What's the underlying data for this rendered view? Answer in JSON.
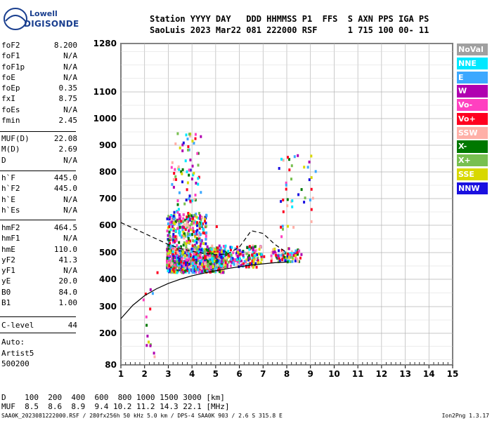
{
  "brand": {
    "line1": "Lowell",
    "line2": "DIGISONDE"
  },
  "header": {
    "line1": "Station YYYY DAY   DDD HHMMSS P1  FFS  S AXN PPS IGA PS",
    "line2": "SaoLuis 2023 Mar22 081 222000 RSF      1 715 100 00- 11"
  },
  "params_group1": [
    {
      "label": "foF2",
      "value": "8.200"
    },
    {
      "label": "foF1",
      "value": "N/A"
    },
    {
      "label": "foF1p",
      "value": "N/A"
    },
    {
      "label": "foE",
      "value": "N/A"
    },
    {
      "label": "foEp",
      "value": "0.35"
    },
    {
      "label": "fxI",
      "value": "8.75"
    },
    {
      "label": "foEs",
      "value": "N/A"
    },
    {
      "label": "fmin",
      "value": "2.45"
    }
  ],
  "params_group2": [
    {
      "label": "MUF(D)",
      "value": "22.08"
    },
    {
      "label": "M(D)",
      "value": "2.69"
    },
    {
      "label": "D",
      "value": "N/A"
    }
  ],
  "params_group3": [
    {
      "label": "h`F",
      "value": "445.0"
    },
    {
      "label": "h`F2",
      "value": "445.0"
    },
    {
      "label": "h`E",
      "value": "N/A"
    },
    {
      "label": "h`Es",
      "value": "N/A"
    }
  ],
  "params_group4": [
    {
      "label": "hmF2",
      "value": "464.5"
    },
    {
      "label": "hmF1",
      "value": "N/A"
    },
    {
      "label": "hmE",
      "value": "110.0"
    },
    {
      "label": "yF2",
      "value": "41.3"
    },
    {
      "label": "yF1",
      "value": "N/A"
    },
    {
      "label": "yE",
      "value": "20.0"
    },
    {
      "label": "B0",
      "value": "84.0"
    },
    {
      "label": "B1",
      "value": "1.00"
    }
  ],
  "clevel": {
    "label": "C-level",
    "value": "44"
  },
  "auto": {
    "line1": "Auto:",
    "line2": "Artist5",
    "line3": "500200"
  },
  "legend": [
    {
      "label": "NoVal",
      "color": "#a0a0a0"
    },
    {
      "label": "NNE",
      "color": "#00e8ff"
    },
    {
      "label": "E",
      "color": "#3ca8ff"
    },
    {
      "label": "W",
      "color": "#b000b0"
    },
    {
      "label": "Vo-",
      "color": "#ff40c0"
    },
    {
      "label": "Vo+",
      "color": "#ff0020"
    },
    {
      "label": "SSW",
      "color": "#ffb0a8"
    },
    {
      "label": "X-",
      "color": "#007800"
    },
    {
      "label": "X+",
      "color": "#78c050"
    },
    {
      "label": "SSE",
      "color": "#d8d800"
    },
    {
      "label": "NNW",
      "color": "#1a10e0"
    }
  ],
  "muf_table": {
    "line1": "D    100  200  400  600  800 1000 1500 3000 [km]",
    "line2": "MUF  8.5  8.6  8.9  9.4 10.2 11.2 14.3 22.1 [MHz]"
  },
  "footer": {
    "left": "SAA0K_2023081222000.RSF / 280fx256h 50 kHz 5.0 km / DPS-4 SAA0K 903 / 2.6 S 315.8 E",
    "right": "Ion2Png 1.3.17"
  },
  "chart_data": {
    "type": "scatter",
    "x_ticks": [
      1,
      2,
      3,
      4,
      5,
      6,
      7,
      8,
      9,
      10,
      11,
      12,
      13,
      14,
      15
    ],
    "y_ticks": [
      80,
      200,
      300,
      400,
      500,
      600,
      700,
      800,
      900,
      1000,
      1100,
      1280
    ],
    "xlim": [
      1,
      15
    ],
    "ylim": [
      80,
      1280
    ],
    "grid": true,
    "series": [
      {
        "color_ref": "ordinary trace",
        "points": [
          [
            2.5,
            430
          ],
          [
            3,
            455
          ],
          [
            3.5,
            470
          ],
          [
            4,
            480
          ],
          [
            4.5,
            485
          ],
          [
            5,
            490
          ],
          [
            5.5,
            495
          ],
          [
            6,
            500
          ],
          [
            6.5,
            495
          ],
          [
            7,
            490
          ],
          [
            7.5,
            495
          ],
          [
            8,
            500
          ],
          [
            8.4,
            505
          ]
        ]
      },
      {
        "color_ref": "oblique spread F",
        "points": [
          [
            3,
            600
          ],
          [
            3.5,
            620
          ],
          [
            4,
            630
          ],
          [
            4.5,
            620
          ],
          [
            5,
            600
          ],
          [
            3.2,
            800
          ],
          [
            3.8,
            900
          ],
          [
            4.1,
            930
          ],
          [
            7.8,
            700
          ],
          [
            8,
            860
          ],
          [
            9,
            740
          ]
        ]
      }
    ],
    "profile_line": [
      [
        1,
        255
      ],
      [
        1.5,
        305
      ],
      [
        2,
        340
      ],
      [
        2.5,
        365
      ],
      [
        3,
        385
      ],
      [
        3.5,
        400
      ],
      [
        4,
        413
      ],
      [
        4.5,
        423
      ],
      [
        5,
        432
      ],
      [
        5.5,
        440
      ],
      [
        6,
        447
      ],
      [
        6.5,
        453
      ],
      [
        7,
        458
      ],
      [
        7.5,
        462
      ],
      [
        8,
        464.5
      ]
    ],
    "extrapolated_line": [
      [
        1,
        610
      ],
      [
        1.5,
        590
      ],
      [
        2,
        570
      ],
      [
        2.5,
        550
      ],
      [
        3,
        530
      ],
      [
        3.5,
        515
      ],
      [
        4,
        505
      ],
      [
        4.5,
        497
      ],
      [
        5,
        492
      ],
      [
        5.5,
        495
      ],
      [
        6,
        520
      ],
      [
        6.5,
        580
      ],
      [
        7,
        570
      ],
      [
        7.5,
        530
      ],
      [
        8,
        500
      ]
    ]
  }
}
